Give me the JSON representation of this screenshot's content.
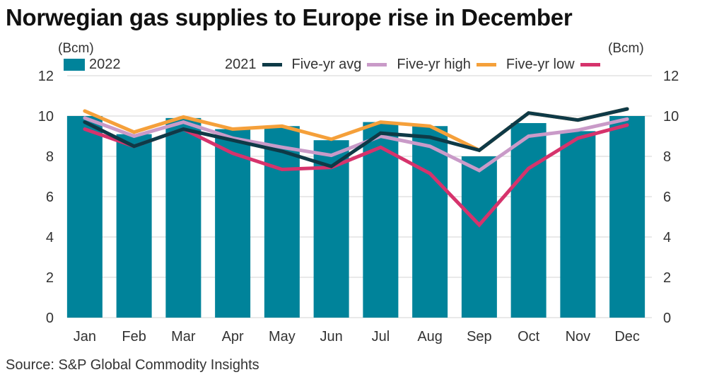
{
  "title": "Norwegian gas supplies to Europe rise in December",
  "source": "Source: S&P Global Commodity Insights",
  "chart_data": {
    "type": "bar",
    "title": "Norwegian gas supplies to Europe rise in December",
    "ylabel_left": "(Bcm)",
    "ylabel_right": "(Bcm)",
    "xlabel": "",
    "ylim": [
      0,
      12
    ],
    "yticks": [
      0,
      2,
      4,
      6,
      8,
      10,
      12
    ],
    "grid": true,
    "legend_placement": "top",
    "categories": [
      "Jan",
      "Feb",
      "Mar",
      "Apr",
      "May",
      "Jun",
      "Jul",
      "Aug",
      "Sep",
      "Oct",
      "Nov",
      "Dec"
    ],
    "series": [
      {
        "name": "2022",
        "kind": "bar",
        "color": "#00839a",
        "values": [
          10.0,
          9.1,
          9.9,
          9.35,
          9.5,
          8.8,
          9.7,
          9.5,
          8.0,
          9.65,
          9.25,
          10.0
        ]
      },
      {
        "name": "Five-yr high",
        "kind": "line",
        "color": "#f5a03a",
        "values": [
          10.25,
          9.2,
          9.95,
          9.35,
          9.5,
          8.85,
          9.7,
          9.5,
          8.3,
          10.15,
          9.8,
          10.35
        ]
      },
      {
        "name": "Five-yr avg",
        "kind": "line",
        "color": "#c99ac8",
        "values": [
          9.9,
          9.0,
          9.7,
          8.9,
          8.45,
          8.05,
          9.0,
          8.5,
          7.3,
          9.0,
          9.3,
          9.85
        ]
      },
      {
        "name": "Five-yr low",
        "kind": "line",
        "color": "#d6336c",
        "values": [
          9.35,
          8.5,
          9.35,
          8.15,
          7.35,
          7.45,
          8.45,
          7.15,
          4.6,
          7.4,
          8.9,
          9.55
        ]
      },
      {
        "name": "2021",
        "kind": "line",
        "color": "#0e3a47",
        "values": [
          9.7,
          8.5,
          9.35,
          8.8,
          8.25,
          7.5,
          9.15,
          8.95,
          8.3,
          10.15,
          9.8,
          10.35
        ]
      }
    ]
  },
  "legend": {
    "bar_label": "2022",
    "line_items": [
      {
        "label": "2021",
        "color": "#0e3a47"
      },
      {
        "label": "Five-yr avg",
        "color": "#c99ac8"
      },
      {
        "label": "Five-yr high",
        "color": "#f5a03a"
      },
      {
        "label": "Five-yr low",
        "color": "#d6336c"
      }
    ]
  }
}
